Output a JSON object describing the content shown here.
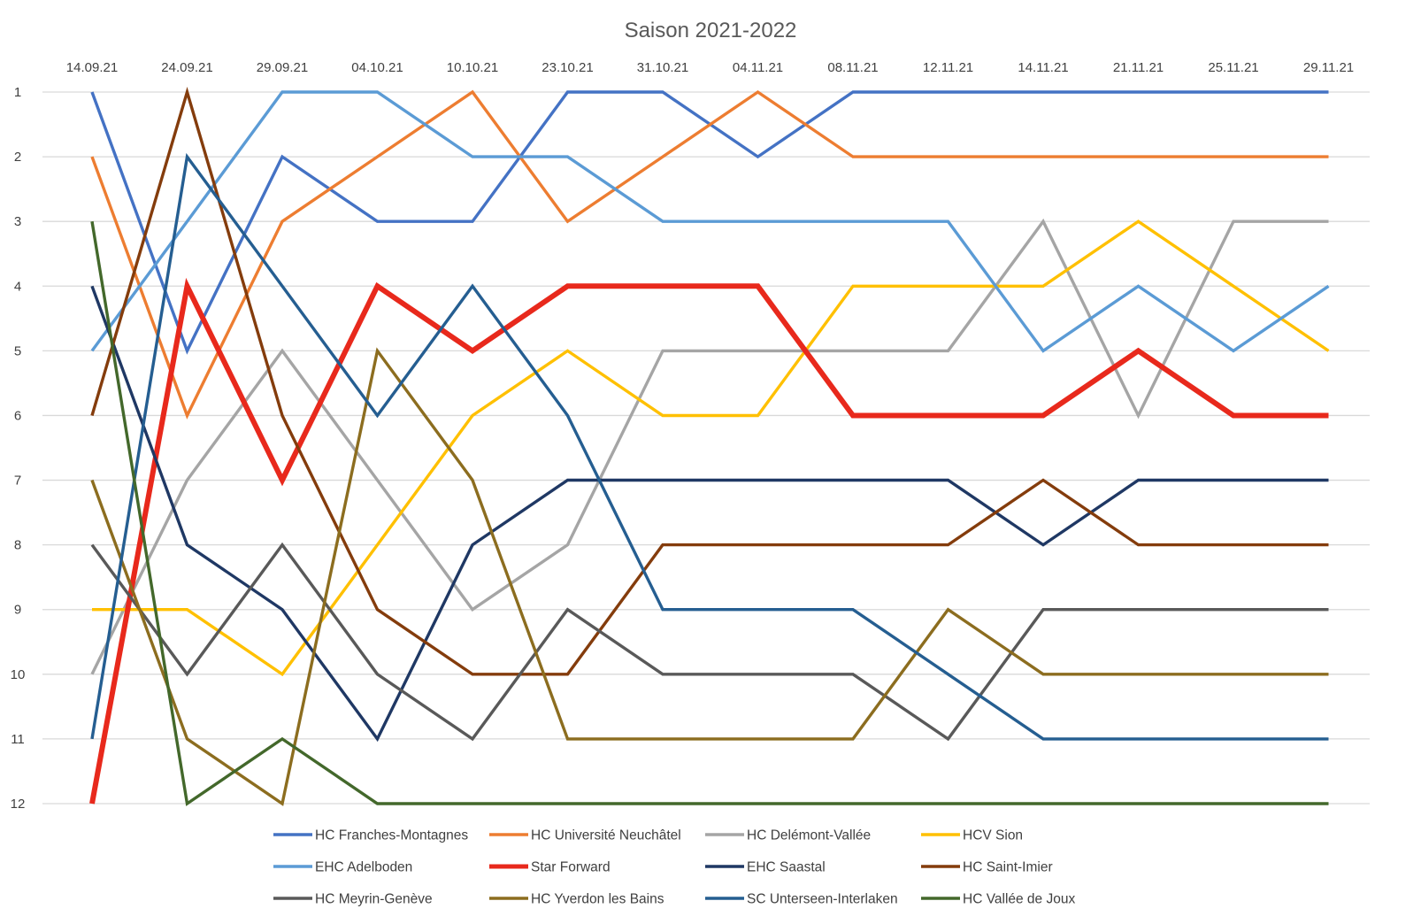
{
  "chart_data": {
    "type": "line",
    "title": "Saison 2021-2022",
    "xlabel": "",
    "ylabel": "",
    "categories": [
      "14.09.21",
      "24.09.21",
      "29.09.21",
      "04.10.21",
      "10.10.21",
      "23.10.21",
      "31.10.21",
      "04.11.21",
      "08.11.21",
      "12.11.21",
      "14.11.21",
      "21.11.21",
      "25.11.21",
      "29.11.21"
    ],
    "y_axis": {
      "reversed": true,
      "ylim": [
        1,
        12
      ],
      "ticks": [
        1,
        2,
        3,
        4,
        5,
        6,
        7,
        8,
        9,
        10,
        11,
        12
      ]
    },
    "x_axis_position": "top",
    "grid": {
      "horizontal": true,
      "vertical": false
    },
    "legend_position": "bottom",
    "series": [
      {
        "name": "HC Franches-Montagnes",
        "color": "#4472C4",
        "values": [
          1,
          5,
          2,
          3,
          3,
          1,
          1,
          2,
          1,
          1,
          1,
          1,
          1,
          1
        ]
      },
      {
        "name": "HC Université Neuchâtel",
        "color": "#ED7D31",
        "values": [
          2,
          6,
          3,
          2,
          1,
          3,
          2,
          1,
          2,
          2,
          2,
          2,
          2,
          2
        ]
      },
      {
        "name": "HC Delémont-Vallée",
        "color": "#A5A5A5",
        "values": [
          10,
          7,
          5,
          7,
          9,
          8,
          5,
          5,
          5,
          5,
          3,
          6,
          3,
          3
        ]
      },
      {
        "name": "HCV Sion",
        "color": "#FFC000",
        "values": [
          9,
          9,
          10,
          8,
          6,
          5,
          6,
          6,
          4,
          4,
          4,
          3,
          4,
          5
        ]
      },
      {
        "name": "EHC Adelboden",
        "color": "#5B9BD5",
        "values": [
          5,
          3,
          1,
          1,
          2,
          2,
          3,
          3,
          3,
          3,
          5,
          4,
          5,
          4
        ]
      },
      {
        "name": "Star Forward",
        "color": "#E8291C",
        "values": [
          12,
          4,
          7,
          4,
          5,
          4,
          4,
          4,
          6,
          6,
          6,
          5,
          6,
          6
        ],
        "bold": true
      },
      {
        "name": "EHC Saastal",
        "color": "#1F3864",
        "values": [
          4,
          8,
          9,
          11,
          8,
          7,
          7,
          7,
          7,
          7,
          8,
          7,
          7,
          7
        ]
      },
      {
        "name": "HC Saint-Imier",
        "color": "#843C0C",
        "values": [
          6,
          1,
          6,
          9,
          10,
          10,
          8,
          8,
          8,
          8,
          7,
          8,
          8,
          8
        ]
      },
      {
        "name": "HC Meyrin-Genève",
        "color": "#595959",
        "values": [
          8,
          10,
          8,
          10,
          11,
          9,
          10,
          10,
          10,
          11,
          9,
          9,
          9,
          9
        ]
      },
      {
        "name": "HC Yverdon les Bains",
        "color": "#8C6D1F",
        "values": [
          7,
          11,
          12,
          5,
          7,
          11,
          11,
          11,
          11,
          9,
          10,
          10,
          10,
          10
        ]
      },
      {
        "name": "SC Unterseen-Interlaken",
        "color": "#255E91",
        "values": [
          11,
          2,
          4,
          6,
          4,
          6,
          9,
          9,
          9,
          10,
          11,
          11,
          11,
          11
        ]
      },
      {
        "name": "HC Vallée de Joux",
        "color": "#43682B",
        "values": [
          3,
          12,
          11,
          12,
          12,
          12,
          12,
          12,
          12,
          12,
          12,
          12,
          12,
          12
        ]
      }
    ]
  }
}
